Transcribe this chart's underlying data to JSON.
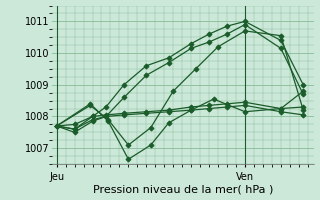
{
  "xlabel": "Pression niveau de la mer( hPa )",
  "background_color": "#cce8d8",
  "grid_color": "#88bb99",
  "line_color": "#1a5c2a",
  "ylim": [
    1006.5,
    1011.5
  ],
  "yticks": [
    1007,
    1008,
    1009,
    1010,
    1011
  ],
  "lines": [
    {
      "x": [
        0.0,
        0.08,
        0.16,
        0.22,
        0.3,
        0.4,
        0.5,
        0.6,
        0.68,
        0.76,
        0.84,
        1.0,
        1.1
      ],
      "y": [
        1007.7,
        1007.75,
        1008.0,
        1008.3,
        1009.0,
        1009.6,
        1009.85,
        1010.3,
        1010.6,
        1010.85,
        1011.0,
        1010.4,
        1009.0
      ]
    },
    {
      "x": [
        0.0,
        0.08,
        0.16,
        0.22,
        0.3,
        0.4,
        0.5,
        0.6,
        0.68,
        0.76,
        0.84,
        1.0,
        1.1
      ],
      "y": [
        1007.7,
        1007.5,
        1007.85,
        1008.0,
        1008.6,
        1009.3,
        1009.7,
        1010.15,
        1010.35,
        1010.6,
        1010.9,
        1010.15,
        1008.7
      ]
    },
    {
      "x": [
        0.0,
        0.15,
        0.23,
        0.32,
        0.42,
        0.52,
        0.62,
        0.72,
        0.84,
        1.0,
        1.1
      ],
      "y": [
        1007.7,
        1008.35,
        1007.9,
        1007.1,
        1007.65,
        1008.8,
        1009.5,
        1010.2,
        1010.7,
        1010.55,
        1008.2
      ]
    },
    {
      "x": [
        0.0,
        0.15,
        0.23,
        0.32,
        0.42,
        0.5,
        0.6,
        0.7,
        0.84,
        1.0,
        1.1
      ],
      "y": [
        1007.7,
        1008.4,
        1007.85,
        1006.65,
        1007.1,
        1007.8,
        1008.2,
        1008.55,
        1008.15,
        1008.25,
        1008.8
      ]
    },
    {
      "x": [
        0.0,
        0.08,
        0.16,
        0.22,
        0.3,
        0.4,
        0.5,
        0.6,
        0.68,
        0.76,
        0.84,
        1.0,
        1.1
      ],
      "y": [
        1007.7,
        1007.6,
        1007.9,
        1008.0,
        1008.05,
        1008.1,
        1008.15,
        1008.2,
        1008.25,
        1008.3,
        1008.35,
        1008.15,
        1008.05
      ]
    },
    {
      "x": [
        0.0,
        0.08,
        0.16,
        0.22,
        0.3,
        0.4,
        0.5,
        0.6,
        0.68,
        0.76,
        0.84,
        1.0,
        1.1
      ],
      "y": [
        1007.7,
        1007.6,
        1008.0,
        1008.05,
        1008.1,
        1008.15,
        1008.2,
        1008.3,
        1008.35,
        1008.4,
        1008.45,
        1008.25,
        1008.3
      ]
    }
  ],
  "marker": "D",
  "marker_size": 2.5,
  "line_width": 0.9,
  "x_jeu": 0.0,
  "x_ven": 0.84,
  "xtick_positions": [
    0.0,
    0.84
  ],
  "xtick_labels": [
    "Jeu",
    "Ven"
  ],
  "xlim": [
    -0.02,
    1.15
  ],
  "xlabel_fontsize": 8,
  "ytick_fontsize": 7,
  "xtick_fontsize": 7
}
